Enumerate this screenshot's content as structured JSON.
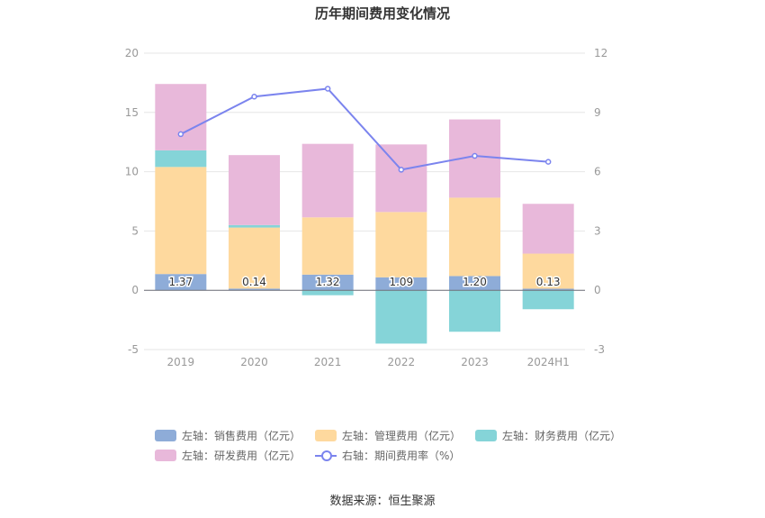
{
  "title": "历年期间费用变化情况",
  "source": "数据来源：恒生聚源",
  "legend": [
    {
      "label": "左轴：销售费用（亿元）",
      "color": "#8eacd8",
      "kind": "bar"
    },
    {
      "label": "左轴：管理费用（亿元）",
      "color": "#fed99e",
      "kind": "bar"
    },
    {
      "label": "左轴：财务费用（亿元）",
      "color": "#85d4d8",
      "kind": "bar"
    },
    {
      "label": "左轴：研发费用（亿元）",
      "color": "#e8b8da",
      "kind": "bar"
    },
    {
      "label": "右轴：期间费用率（%）",
      "color": "#7b84ee",
      "kind": "line"
    }
  ],
  "chart_data": {
    "type": "bar",
    "stacked": true,
    "categories": [
      "2019",
      "2020",
      "2021",
      "2022",
      "2023",
      "2024H1"
    ],
    "left_axis": {
      "ylim": [
        -5,
        20
      ],
      "ticks": [
        -5,
        0,
        5,
        10,
        15,
        20
      ]
    },
    "right_axis": {
      "ylim": [
        -3,
        12
      ],
      "ticks": [
        -3,
        0,
        3,
        6,
        9,
        12
      ]
    },
    "series": [
      {
        "name": "左轴：销售费用（亿元）",
        "axis": "left",
        "color": "#8eacd8",
        "values": [
          1.37,
          0.14,
          1.32,
          1.09,
          1.2,
          0.13
        ],
        "data_labels": [
          "1.37",
          "0.14",
          "1.32",
          "1.09",
          "1.20",
          "0.13"
        ]
      },
      {
        "name": "左轴：管理费用（亿元）",
        "axis": "left",
        "color": "#fed99e",
        "values": [
          9.03,
          5.15,
          4.83,
          5.51,
          6.61,
          2.96
        ]
      },
      {
        "name": "左轴：财务费用（亿元）",
        "axis": "left",
        "color": "#85d4d8",
        "values": [
          1.4,
          0.21,
          -0.42,
          -4.5,
          -3.5,
          -1.6
        ]
      },
      {
        "name": "左轴：研发费用（亿元）",
        "axis": "left",
        "color": "#e8b8da",
        "values": [
          5.6,
          5.9,
          6.2,
          5.7,
          6.6,
          4.2
        ]
      },
      {
        "name": "右轴：期间费用率（%）",
        "axis": "right",
        "type": "line",
        "color": "#7b84ee",
        "values": [
          7.9,
          9.8,
          10.2,
          6.1,
          6.8,
          6.5
        ]
      }
    ],
    "grid": true,
    "legend_position": "bottom"
  }
}
